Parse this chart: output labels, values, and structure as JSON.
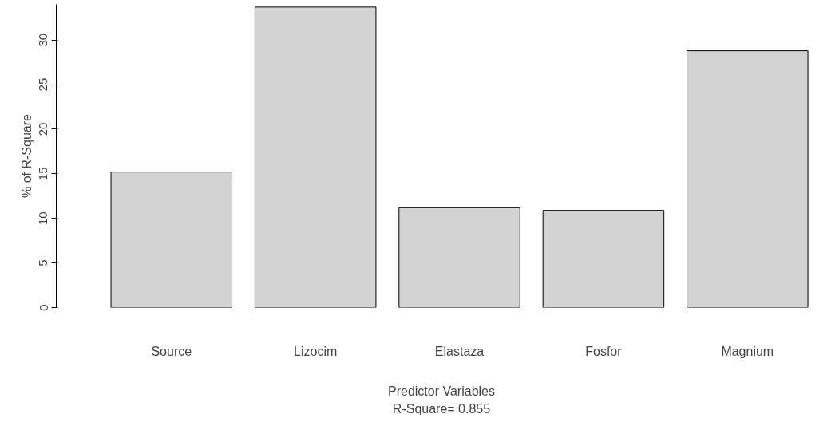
{
  "chart_data": {
    "type": "bar",
    "categories": [
      "Source",
      "Lizocim",
      "Elastaza",
      "Fosfor",
      "Magnium"
    ],
    "values": [
      15.2,
      33.7,
      11.2,
      10.9,
      28.8
    ],
    "color": "#d3d3d3",
    "xlabel": "Predictor Variables",
    "ylabel": "% of R-Square",
    "annotations": [
      "R-Square= 0.855"
    ],
    "ylim": [
      0,
      34
    ],
    "yticks": [
      0,
      5,
      10,
      15,
      20,
      25,
      30
    ],
    "grid": false
  }
}
